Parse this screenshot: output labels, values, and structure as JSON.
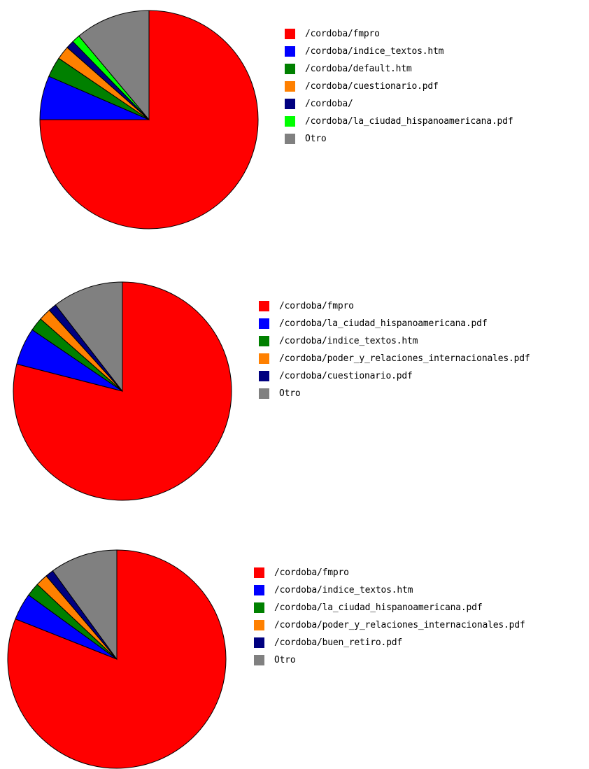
{
  "chart_data": [
    {
      "type": "pie",
      "legend_position": "right",
      "slices": [
        {
          "label": "/cordoba/fmpro",
          "value": 75.0,
          "color": "#ff0000"
        },
        {
          "label": "/cordoba/indice_textos.htm",
          "value": 6.5,
          "color": "#0000ff"
        },
        {
          "label": "/cordoba/default.htm",
          "value": 3.0,
          "color": "#008000"
        },
        {
          "label": "/cordoba/cuestionario.pdf",
          "value": 2.0,
          "color": "#ff8000"
        },
        {
          "label": "/cordoba/",
          "value": 1.2,
          "color": "#000080"
        },
        {
          "label": "/cordoba/la_ciudad_hispanoamericana.pdf",
          "value": 1.2,
          "color": "#00ff00"
        },
        {
          "label": "Otro",
          "value": 11.1,
          "color": "#808080"
        }
      ]
    },
    {
      "type": "pie",
      "legend_position": "right",
      "slices": [
        {
          "label": "/cordoba/fmpro",
          "value": 79.0,
          "color": "#ff0000"
        },
        {
          "label": "/cordoba/la_ciudad_hispanoamericana.pdf",
          "value": 5.5,
          "color": "#0000ff"
        },
        {
          "label": "/cordoba/indice_textos.htm",
          "value": 2.0,
          "color": "#008000"
        },
        {
          "label": "/cordoba/poder_y_relaciones_internacionales.pdf",
          "value": 1.8,
          "color": "#ff8000"
        },
        {
          "label": "/cordoba/cuestionario.pdf",
          "value": 1.2,
          "color": "#000080"
        },
        {
          "label": "Otro",
          "value": 10.5,
          "color": "#808080"
        }
      ]
    },
    {
      "type": "pie",
      "legend_position": "right",
      "slices": [
        {
          "label": "/cordoba/fmpro",
          "value": 81.0,
          "color": "#ff0000"
        },
        {
          "label": "/cordoba/indice_textos.htm",
          "value": 4.0,
          "color": "#0000ff"
        },
        {
          "label": "/cordoba/la_ciudad_hispanoamericana.pdf",
          "value": 2.0,
          "color": "#008000"
        },
        {
          "label": "/cordoba/poder_y_relaciones_internacionales.pdf",
          "value": 1.8,
          "color": "#ff8000"
        },
        {
          "label": "/cordoba/buen_retiro.pdf",
          "value": 1.2,
          "color": "#000080"
        },
        {
          "label": "Otro",
          "value": 10.0,
          "color": "#808080"
        }
      ]
    }
  ]
}
